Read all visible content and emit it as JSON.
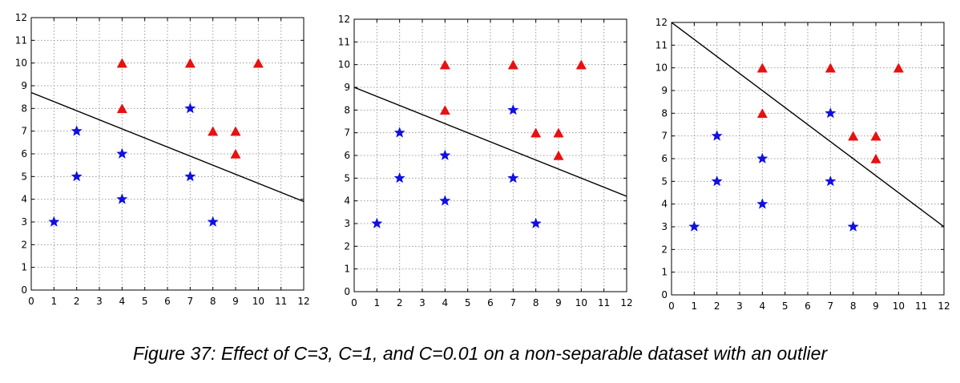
{
  "caption": "Figure 37: Effect of C=3, C=1, and C=0.01 on a non-separable dataset with an outlier",
  "colors": {
    "star": "#1010e0",
    "triangle": "#e81010",
    "line": "#000000",
    "grid": "#9a9a9a"
  },
  "chart_data": [
    {
      "type": "scatter",
      "xlim": [
        0,
        12
      ],
      "ylim": [
        0,
        12
      ],
      "xticks": [
        0,
        1,
        2,
        3,
        4,
        5,
        6,
        7,
        8,
        9,
        10,
        11,
        12
      ],
      "yticks": [
        0,
        1,
        2,
        3,
        4,
        5,
        6,
        7,
        8,
        9,
        10,
        11,
        12
      ],
      "grid": true,
      "series": [
        {
          "marker": "star",
          "color": "#1010e0",
          "points": [
            [
              1,
              3
            ],
            [
              2,
              5
            ],
            [
              2,
              7
            ],
            [
              4,
              4
            ],
            [
              4,
              6
            ],
            [
              7,
              5
            ],
            [
              7,
              8
            ],
            [
              8,
              3
            ]
          ]
        },
        {
          "marker": "triangle",
          "color": "#e81010",
          "points": [
            [
              4,
              8
            ],
            [
              4,
              10
            ],
            [
              7,
              10
            ],
            [
              8,
              7
            ],
            [
              9,
              6
            ],
            [
              9,
              7
            ],
            [
              10,
              10
            ]
          ]
        }
      ],
      "lines": [
        {
          "x": [
            0,
            12
          ],
          "y": [
            8.7,
            3.9
          ]
        }
      ]
    },
    {
      "type": "scatter",
      "xlim": [
        0,
        12
      ],
      "ylim": [
        0,
        12
      ],
      "xticks": [
        0,
        1,
        2,
        3,
        4,
        5,
        6,
        7,
        8,
        9,
        10,
        11,
        12
      ],
      "yticks": [
        0,
        1,
        2,
        3,
        4,
        5,
        6,
        7,
        8,
        9,
        10,
        11,
        12
      ],
      "grid": true,
      "series": [
        {
          "marker": "star",
          "color": "#1010e0",
          "points": [
            [
              1,
              3
            ],
            [
              2,
              5
            ],
            [
              2,
              7
            ],
            [
              4,
              4
            ],
            [
              4,
              6
            ],
            [
              7,
              5
            ],
            [
              7,
              8
            ],
            [
              8,
              3
            ]
          ]
        },
        {
          "marker": "triangle",
          "color": "#e81010",
          "points": [
            [
              4,
              8
            ],
            [
              4,
              10
            ],
            [
              7,
              10
            ],
            [
              8,
              7
            ],
            [
              9,
              6
            ],
            [
              9,
              7
            ],
            [
              10,
              10
            ]
          ]
        }
      ],
      "lines": [
        {
          "x": [
            0,
            12
          ],
          "y": [
            9.0,
            4.2
          ]
        }
      ]
    },
    {
      "type": "scatter",
      "xlim": [
        0,
        12
      ],
      "ylim": [
        0,
        12
      ],
      "xticks": [
        0,
        1,
        2,
        3,
        4,
        5,
        6,
        7,
        8,
        9,
        10,
        11,
        12
      ],
      "yticks": [
        0,
        1,
        2,
        3,
        4,
        5,
        6,
        7,
        8,
        9,
        10,
        11,
        12
      ],
      "grid": true,
      "series": [
        {
          "marker": "star",
          "color": "#1010e0",
          "points": [
            [
              1,
              3
            ],
            [
              2,
              5
            ],
            [
              2,
              7
            ],
            [
              4,
              4
            ],
            [
              4,
              6
            ],
            [
              7,
              5
            ],
            [
              7,
              8
            ],
            [
              8,
              3
            ]
          ]
        },
        {
          "marker": "triangle",
          "color": "#e81010",
          "points": [
            [
              4,
              8
            ],
            [
              4,
              10
            ],
            [
              7,
              10
            ],
            [
              8,
              7
            ],
            [
              9,
              6
            ],
            [
              9,
              7
            ],
            [
              10,
              10
            ]
          ]
        }
      ],
      "lines": [
        {
          "x": [
            0,
            12
          ],
          "y": [
            12.0,
            3.0
          ]
        }
      ]
    }
  ]
}
